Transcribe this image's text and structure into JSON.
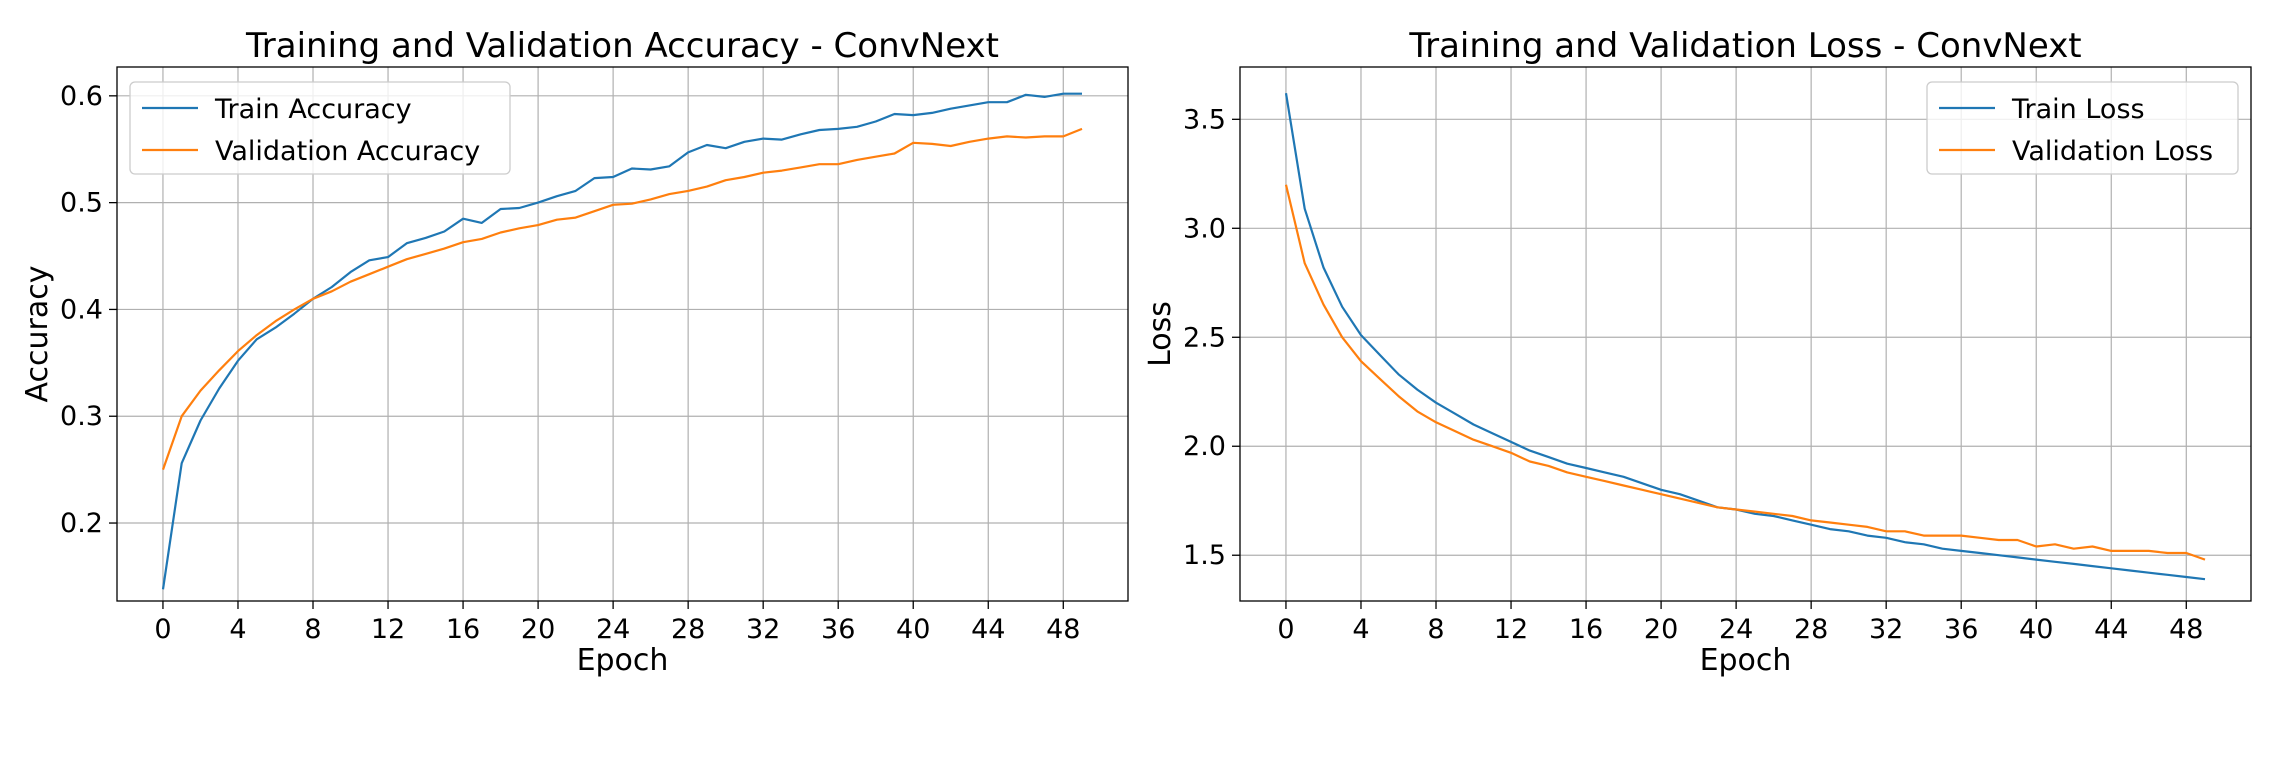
{
  "chart_data": [
    {
      "type": "line",
      "title": "Training and Validation Accuracy - ConvNext",
      "xlabel": "Epoch",
      "ylabel": "Accuracy",
      "xlim": [
        -2.45,
        51.45
      ],
      "ylim": [
        0.127,
        0.627
      ],
      "xticks": [
        0,
        4,
        8,
        12,
        16,
        20,
        24,
        28,
        32,
        36,
        40,
        44,
        48
      ],
      "yticks": [
        0.2,
        0.3,
        0.4,
        0.5,
        0.6
      ],
      "ytick_labels": [
        "0.2",
        "0.3",
        "0.4",
        "0.5",
        "0.6"
      ],
      "grid": true,
      "legend_position": "upper-left",
      "x": [
        0,
        1,
        2,
        3,
        4,
        5,
        6,
        7,
        8,
        9,
        10,
        11,
        12,
        13,
        14,
        15,
        16,
        17,
        18,
        19,
        20,
        21,
        22,
        23,
        24,
        25,
        26,
        27,
        28,
        29,
        30,
        31,
        32,
        33,
        34,
        35,
        36,
        37,
        38,
        39,
        40,
        41,
        42,
        43,
        44,
        45,
        46,
        47,
        48,
        49
      ],
      "series": [
        {
          "name": "Train Accuracy",
          "color": "#1f77b4",
          "values": [
            0.138,
            0.256,
            0.296,
            0.326,
            0.352,
            0.372,
            0.383,
            0.396,
            0.41,
            0.421,
            0.435,
            0.446,
            0.449,
            0.462,
            0.467,
            0.473,
            0.485,
            0.481,
            0.494,
            0.495,
            0.5,
            0.506,
            0.511,
            0.523,
            0.524,
            0.532,
            0.531,
            0.534,
            0.547,
            0.554,
            0.551,
            0.557,
            0.56,
            0.559,
            0.564,
            0.568,
            0.569,
            0.571,
            0.576,
            0.583,
            0.582,
            0.584,
            0.588,
            0.591,
            0.594,
            0.594,
            0.601,
            0.599,
            0.602,
            0.602
          ]
        },
        {
          "name": "Validation Accuracy",
          "color": "#ff7f0e",
          "values": [
            0.25,
            0.3,
            0.324,
            0.343,
            0.361,
            0.376,
            0.389,
            0.4,
            0.41,
            0.417,
            0.426,
            0.433,
            0.44,
            0.447,
            0.452,
            0.457,
            0.463,
            0.466,
            0.472,
            0.476,
            0.479,
            0.484,
            0.486,
            0.492,
            0.498,
            0.499,
            0.503,
            0.508,
            0.511,
            0.515,
            0.521,
            0.524,
            0.528,
            0.53,
            0.533,
            0.536,
            0.536,
            0.54,
            0.543,
            0.546,
            0.556,
            0.555,
            0.553,
            0.557,
            0.56,
            0.562,
            0.561,
            0.562,
            0.562,
            0.569
          ]
        }
      ]
    },
    {
      "type": "line",
      "title": "Training and Validation Loss - ConvNext",
      "xlabel": "Epoch",
      "ylabel": "Loss",
      "xlim": [
        -2.45,
        51.45
      ],
      "ylim": [
        1.29,
        3.74
      ],
      "xticks": [
        0,
        4,
        8,
        12,
        16,
        20,
        24,
        28,
        32,
        36,
        40,
        44,
        48
      ],
      "yticks": [
        1.5,
        2.0,
        2.5,
        3.0,
        3.5
      ],
      "ytick_labels": [
        "1.5",
        "2.0",
        "2.5",
        "3.0",
        "3.5"
      ],
      "grid": true,
      "legend_position": "upper-right",
      "x": [
        0,
        1,
        2,
        3,
        4,
        5,
        6,
        7,
        8,
        9,
        10,
        11,
        12,
        13,
        14,
        15,
        16,
        17,
        18,
        19,
        20,
        21,
        22,
        23,
        24,
        25,
        26,
        27,
        28,
        29,
        30,
        31,
        32,
        33,
        34,
        35,
        36,
        37,
        38,
        39,
        40,
        41,
        42,
        43,
        44,
        45,
        46,
        47,
        48,
        49
      ],
      "series": [
        {
          "name": "Train Loss",
          "color": "#1f77b4",
          "values": [
            3.62,
            3.09,
            2.82,
            2.64,
            2.51,
            2.42,
            2.33,
            2.26,
            2.2,
            2.15,
            2.1,
            2.06,
            2.02,
            1.98,
            1.95,
            1.92,
            1.9,
            1.88,
            1.86,
            1.83,
            1.8,
            1.78,
            1.75,
            1.72,
            1.71,
            1.69,
            1.68,
            1.66,
            1.64,
            1.62,
            1.61,
            1.59,
            1.58,
            1.56,
            1.55,
            1.53,
            1.52,
            1.51,
            1.5,
            1.49,
            1.48,
            1.47,
            1.46,
            1.45,
            1.44,
            1.43,
            1.42,
            1.41,
            1.4,
            1.39
          ]
        },
        {
          "name": "Validation Loss",
          "color": "#ff7f0e",
          "values": [
            3.2,
            2.84,
            2.65,
            2.5,
            2.39,
            2.31,
            2.23,
            2.16,
            2.11,
            2.07,
            2.03,
            2.0,
            1.97,
            1.93,
            1.91,
            1.88,
            1.86,
            1.84,
            1.82,
            1.8,
            1.78,
            1.76,
            1.74,
            1.72,
            1.71,
            1.7,
            1.69,
            1.68,
            1.66,
            1.65,
            1.64,
            1.63,
            1.61,
            1.61,
            1.59,
            1.59,
            1.59,
            1.58,
            1.57,
            1.57,
            1.54,
            1.55,
            1.53,
            1.54,
            1.52,
            1.52,
            1.52,
            1.51,
            1.51,
            1.48
          ]
        }
      ]
    }
  ]
}
